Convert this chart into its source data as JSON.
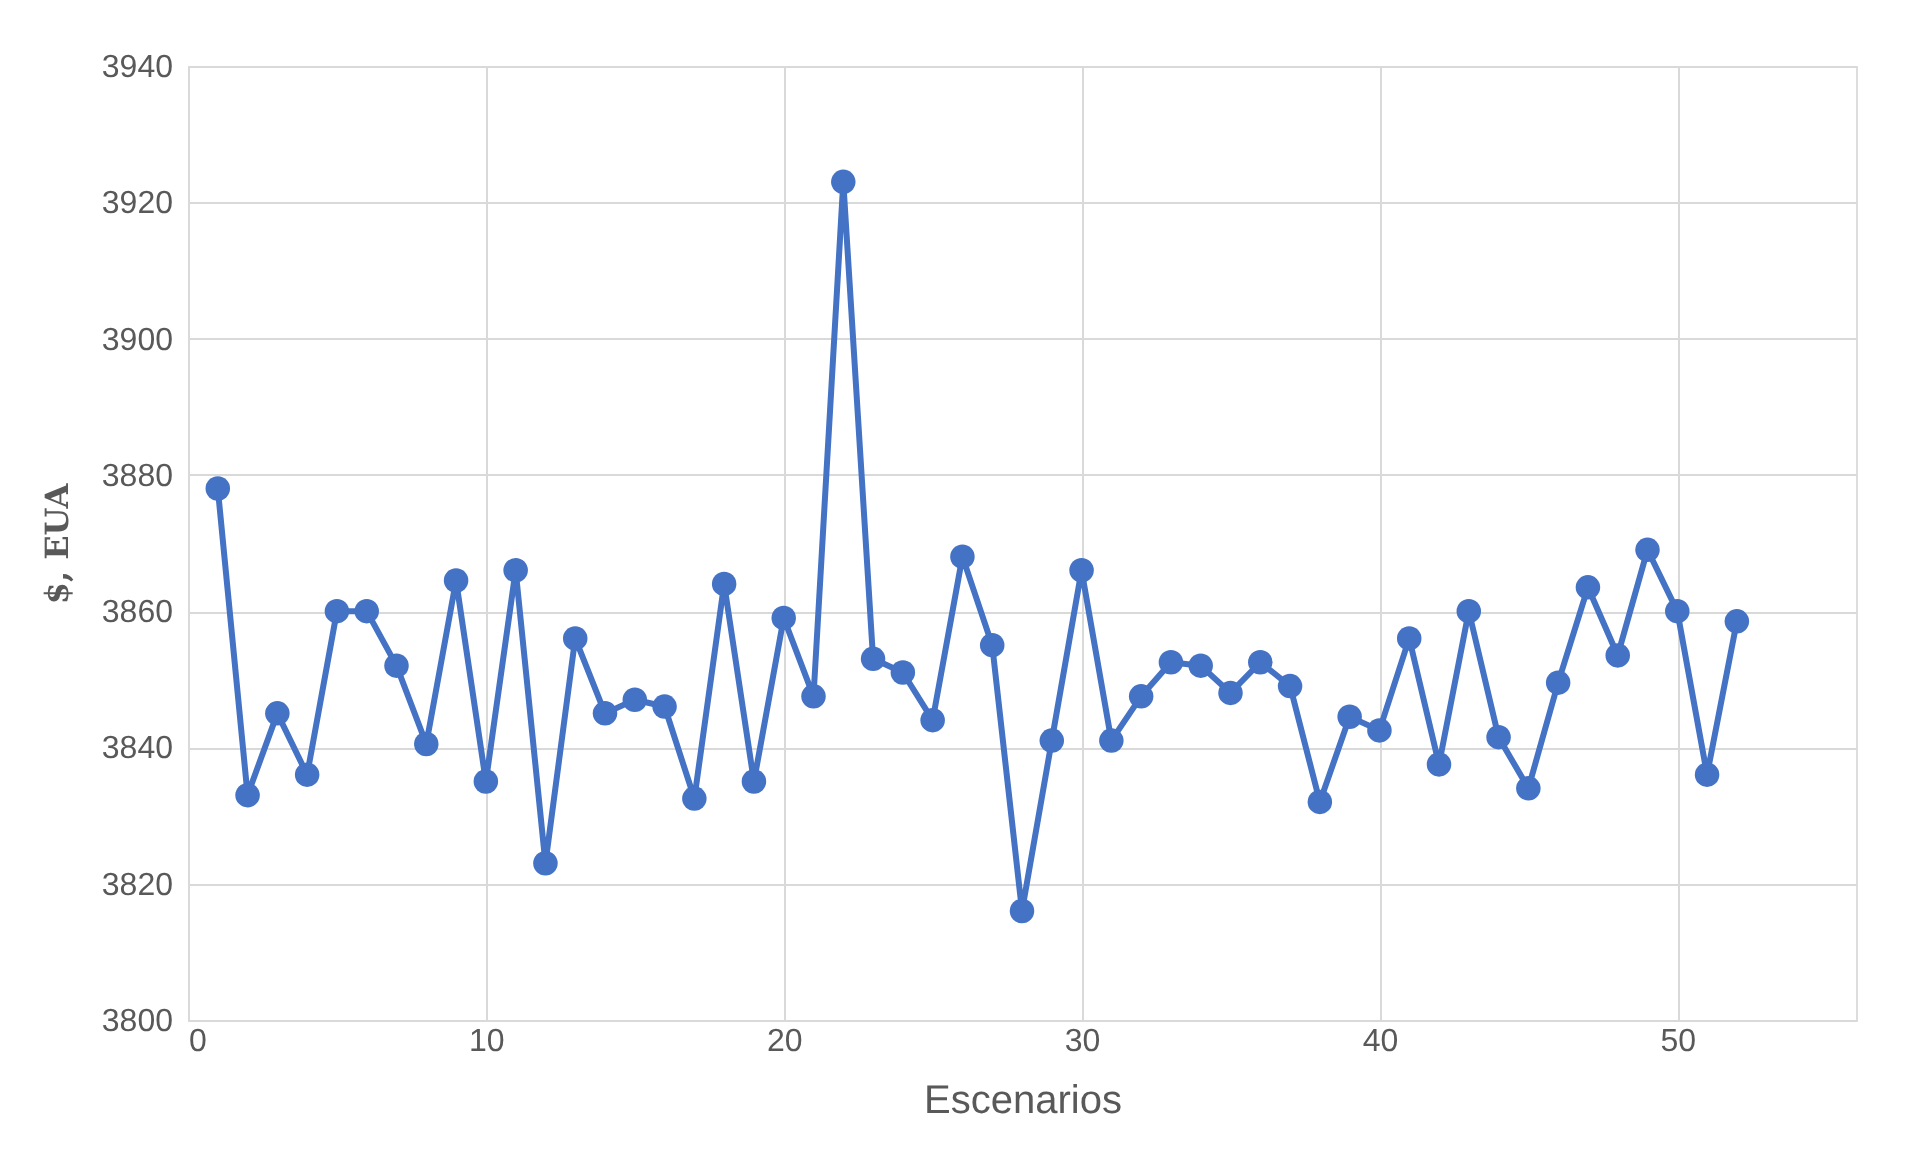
{
  "chart_data": {
    "type": "line",
    "xlabel": "Escenarios",
    "ylabel": "$, EUA",
    "x": [
      1,
      2,
      3,
      4,
      5,
      6,
      7,
      8,
      9,
      10,
      11,
      12,
      13,
      14,
      15,
      16,
      17,
      18,
      19,
      20,
      21,
      22,
      23,
      24,
      25,
      26,
      27,
      28,
      29,
      30,
      31,
      32,
      33,
      34,
      35,
      36,
      37,
      38,
      39,
      40,
      41,
      42,
      43,
      44,
      45,
      46,
      47,
      48,
      49,
      50,
      51,
      52
    ],
    "series": [
      {
        "color": "#4472c4",
        "values": [
          3878,
          3833,
          3845,
          3836,
          3860,
          3860,
          3852,
          3840.5,
          3864.5,
          3835,
          3866,
          3823,
          3856,
          3845,
          3847,
          3846,
          3832.5,
          3864,
          3835,
          3859,
          3847.5,
          3923,
          3853,
          3851,
          3844,
          3868,
          3855,
          3816,
          3841,
          3866,
          3841,
          3847.5,
          3852.5,
          3852,
          3848,
          3852.5,
          3849,
          3832,
          3844.5,
          3842.5,
          3856,
          3837.5,
          3860,
          3841.5,
          3834,
          3849.5,
          3863.5,
          3853.5,
          3869,
          3860,
          3836,
          3858.5
        ]
      }
    ],
    "xlim": [
      0,
      56
    ],
    "xticks": [
      0,
      10,
      20,
      30,
      40,
      50
    ],
    "ylim": [
      3800,
      3940
    ],
    "yticks": [
      3800,
      3820,
      3840,
      3860,
      3880,
      3900,
      3920,
      3940
    ],
    "grid": true,
    "marker": "circle",
    "line_style": "solid"
  }
}
